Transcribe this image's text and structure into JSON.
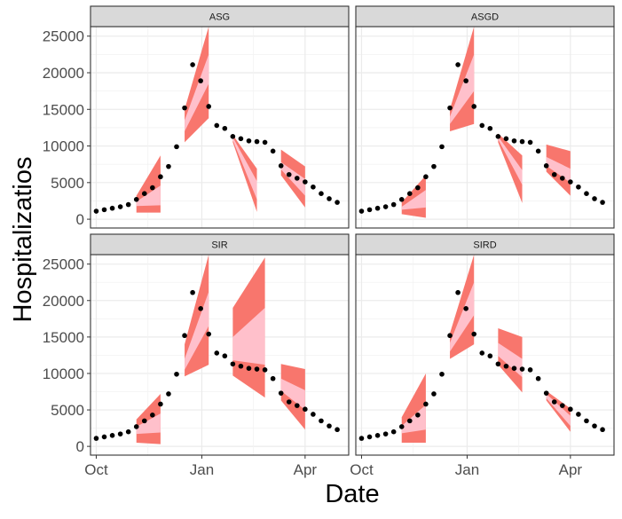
{
  "chart_data": {
    "type": "scatter",
    "layout": "2x2 facet grid",
    "xlabel": "Date",
    "ylabel": "Hospitalizatios",
    "x_ticks": [
      "Oct",
      "Jan",
      "Apr"
    ],
    "x_range": [
      "2020-09-26",
      "2021-05-09"
    ],
    "y_ticks": [
      0,
      5000,
      10000,
      15000,
      20000,
      25000
    ],
    "ylim": [
      -1200,
      26300
    ],
    "grid": true,
    "colors": {
      "outer_band": "#F8766D",
      "inner_band": "#FFC0CB",
      "points": "#000000",
      "strip_fill": "#D9D9D9",
      "panel_border": "#333333",
      "grid": "#EBEBEB"
    },
    "observed": [
      {
        "date": "2020-10-01",
        "value": 1100
      },
      {
        "date": "2020-10-08",
        "value": 1300
      },
      {
        "date": "2020-10-15",
        "value": 1500
      },
      {
        "date": "2020-10-22",
        "value": 1700
      },
      {
        "date": "2020-10-29",
        "value": 2000
      },
      {
        "date": "2020-11-05",
        "value": 2700
      },
      {
        "date": "2020-11-12",
        "value": 3500
      },
      {
        "date": "2020-11-19",
        "value": 4300
      },
      {
        "date": "2020-11-26",
        "value": 5800
      },
      {
        "date": "2020-12-03",
        "value": 7200
      },
      {
        "date": "2020-12-10",
        "value": 9900
      },
      {
        "date": "2020-12-17",
        "value": 15200
      },
      {
        "date": "2020-12-24",
        "value": 21100
      },
      {
        "date": "2020-12-31",
        "value": 18900
      },
      {
        "date": "2021-01-07",
        "value": 15400
      },
      {
        "date": "2021-01-14",
        "value": 12800
      },
      {
        "date": "2021-01-21",
        "value": 12400
      },
      {
        "date": "2021-01-28",
        "value": 11300
      },
      {
        "date": "2021-02-04",
        "value": 11000
      },
      {
        "date": "2021-02-11",
        "value": 10700
      },
      {
        "date": "2021-02-18",
        "value": 10600
      },
      {
        "date": "2021-02-25",
        "value": 10500
      },
      {
        "date": "2021-03-04",
        "value": 9300
      },
      {
        "date": "2021-03-11",
        "value": 7300
      },
      {
        "date": "2021-03-18",
        "value": 6100
      },
      {
        "date": "2021-03-25",
        "value": 5600
      },
      {
        "date": "2021-04-01",
        "value": 5100
      },
      {
        "date": "2021-04-08",
        "value": 4400
      },
      {
        "date": "2021-04-15",
        "value": 3500
      },
      {
        "date": "2021-04-22",
        "value": 2800
      },
      {
        "date": "2021-04-29",
        "value": 2300
      }
    ],
    "panels": [
      {
        "name": "ASG",
        "bands": [
          {
            "dates": [
              "2020-11-05",
              "2020-11-26"
            ],
            "outer_lo": [
              900,
              900
            ],
            "outer_hi": [
              3200,
              8700
            ],
            "inner_lo": [
              1800,
              1900
            ],
            "inner_hi": [
              2400,
              4600
            ]
          },
          {
            "dates": [
              "2020-12-17",
              "2021-01-07"
            ],
            "outer_lo": [
              10500,
              13800
            ],
            "outer_hi": [
              15000,
              26300
            ],
            "inner_lo": [
              12000,
              18500
            ],
            "inner_hi": [
              13500,
              22500
            ]
          },
          {
            "dates": [
              "2021-01-28",
              "2021-02-18"
            ],
            "outer_lo": [
              10500,
              1000
            ],
            "outer_hi": [
              11500,
              6900
            ],
            "inner_lo": [
              10800,
              2700
            ],
            "inner_hi": [
              11200,
              5200
            ]
          },
          {
            "dates": [
              "2021-03-11",
              "2021-04-01"
            ],
            "outer_lo": [
              6000,
              1600
            ],
            "outer_hi": [
              9500,
              7200
            ],
            "inner_lo": [
              6800,
              3200
            ],
            "inner_hi": [
              7800,
              5500
            ]
          }
        ]
      },
      {
        "name": "ASGD",
        "bands": [
          {
            "dates": [
              "2020-11-05",
              "2020-11-26"
            ],
            "outer_lo": [
              700,
              200
            ],
            "outer_hi": [
              2300,
              6000
            ],
            "inner_lo": [
              1300,
              1600
            ],
            "inner_hi": [
              1700,
              4000
            ]
          },
          {
            "dates": [
              "2020-12-17",
              "2021-01-07"
            ],
            "outer_lo": [
              12000,
              13000
            ],
            "outer_hi": [
              15000,
              26300
            ],
            "inner_lo": [
              13000,
              17500
            ],
            "inner_hi": [
              14000,
              22500
            ]
          },
          {
            "dates": [
              "2021-01-28",
              "2021-02-18"
            ],
            "outer_lo": [
              10500,
              2200
            ],
            "outer_hi": [
              11700,
              8700
            ],
            "inner_lo": [
              10900,
              4700
            ],
            "inner_hi": [
              11300,
              6700
            ]
          },
          {
            "dates": [
              "2021-03-11",
              "2021-04-01"
            ],
            "outer_lo": [
              6500,
              3200
            ],
            "outer_hi": [
              10200,
              9300
            ],
            "inner_lo": [
              7300,
              5000
            ],
            "inner_hi": [
              8500,
              6900
            ]
          }
        ]
      },
      {
        "name": "SIR",
        "bands": [
          {
            "dates": [
              "2020-11-05",
              "2020-11-26"
            ],
            "outer_lo": [
              500,
              300
            ],
            "outer_hi": [
              3700,
              7200
            ],
            "inner_lo": [
              1700,
              1900
            ],
            "inner_hi": [
              2700,
              4500
            ]
          },
          {
            "dates": [
              "2020-12-17",
              "2021-01-07"
            ],
            "outer_lo": [
              9600,
              11200
            ],
            "outer_hi": [
              14000,
              26300
            ],
            "inner_lo": [
              10500,
              16500
            ],
            "inner_hi": [
              12000,
              21200
            ]
          },
          {
            "dates": [
              "2021-01-28",
              "2021-02-25"
            ],
            "outer_lo": [
              9700,
              6700
            ],
            "outer_hi": [
              19000,
              25900
            ],
            "inner_lo": [
              11800,
              11200
            ],
            "inner_hi": [
              15000,
              19000
            ]
          },
          {
            "dates": [
              "2021-03-11",
              "2021-04-01"
            ],
            "outer_lo": [
              6300,
              2300
            ],
            "outer_hi": [
              11300,
              10600
            ],
            "inner_lo": [
              7600,
              5000
            ],
            "inner_hi": [
              9300,
              7700
            ]
          }
        ]
      },
      {
        "name": "SIRD",
        "bands": [
          {
            "dates": [
              "2020-11-05",
              "2020-11-26"
            ],
            "outer_lo": [
              500,
              500
            ],
            "outer_hi": [
              4000,
              10000
            ],
            "inner_lo": [
              1800,
              2300
            ],
            "inner_hi": [
              2800,
              5700
            ]
          },
          {
            "dates": [
              "2020-12-17",
              "2021-01-07"
            ],
            "outer_lo": [
              12000,
              14000
            ],
            "outer_hi": [
              15500,
              26300
            ],
            "inner_lo": [
              13000,
              18000
            ],
            "inner_hi": [
              14200,
              22500
            ]
          },
          {
            "dates": [
              "2021-01-28",
              "2021-02-18"
            ],
            "outer_lo": [
              11200,
              7400
            ],
            "outer_hi": [
              16200,
              15000
            ],
            "inner_lo": [
              12400,
              9500
            ],
            "inner_hi": [
              14200,
              12000
            ]
          },
          {
            "dates": [
              "2021-03-11",
              "2021-04-01"
            ],
            "outer_lo": [
              6300,
              2000
            ],
            "outer_hi": [
              7600,
              5200
            ],
            "inner_lo": [
              6600,
              2800
            ],
            "inner_hi": [
              7200,
              4200
            ]
          }
        ]
      }
    ]
  }
}
